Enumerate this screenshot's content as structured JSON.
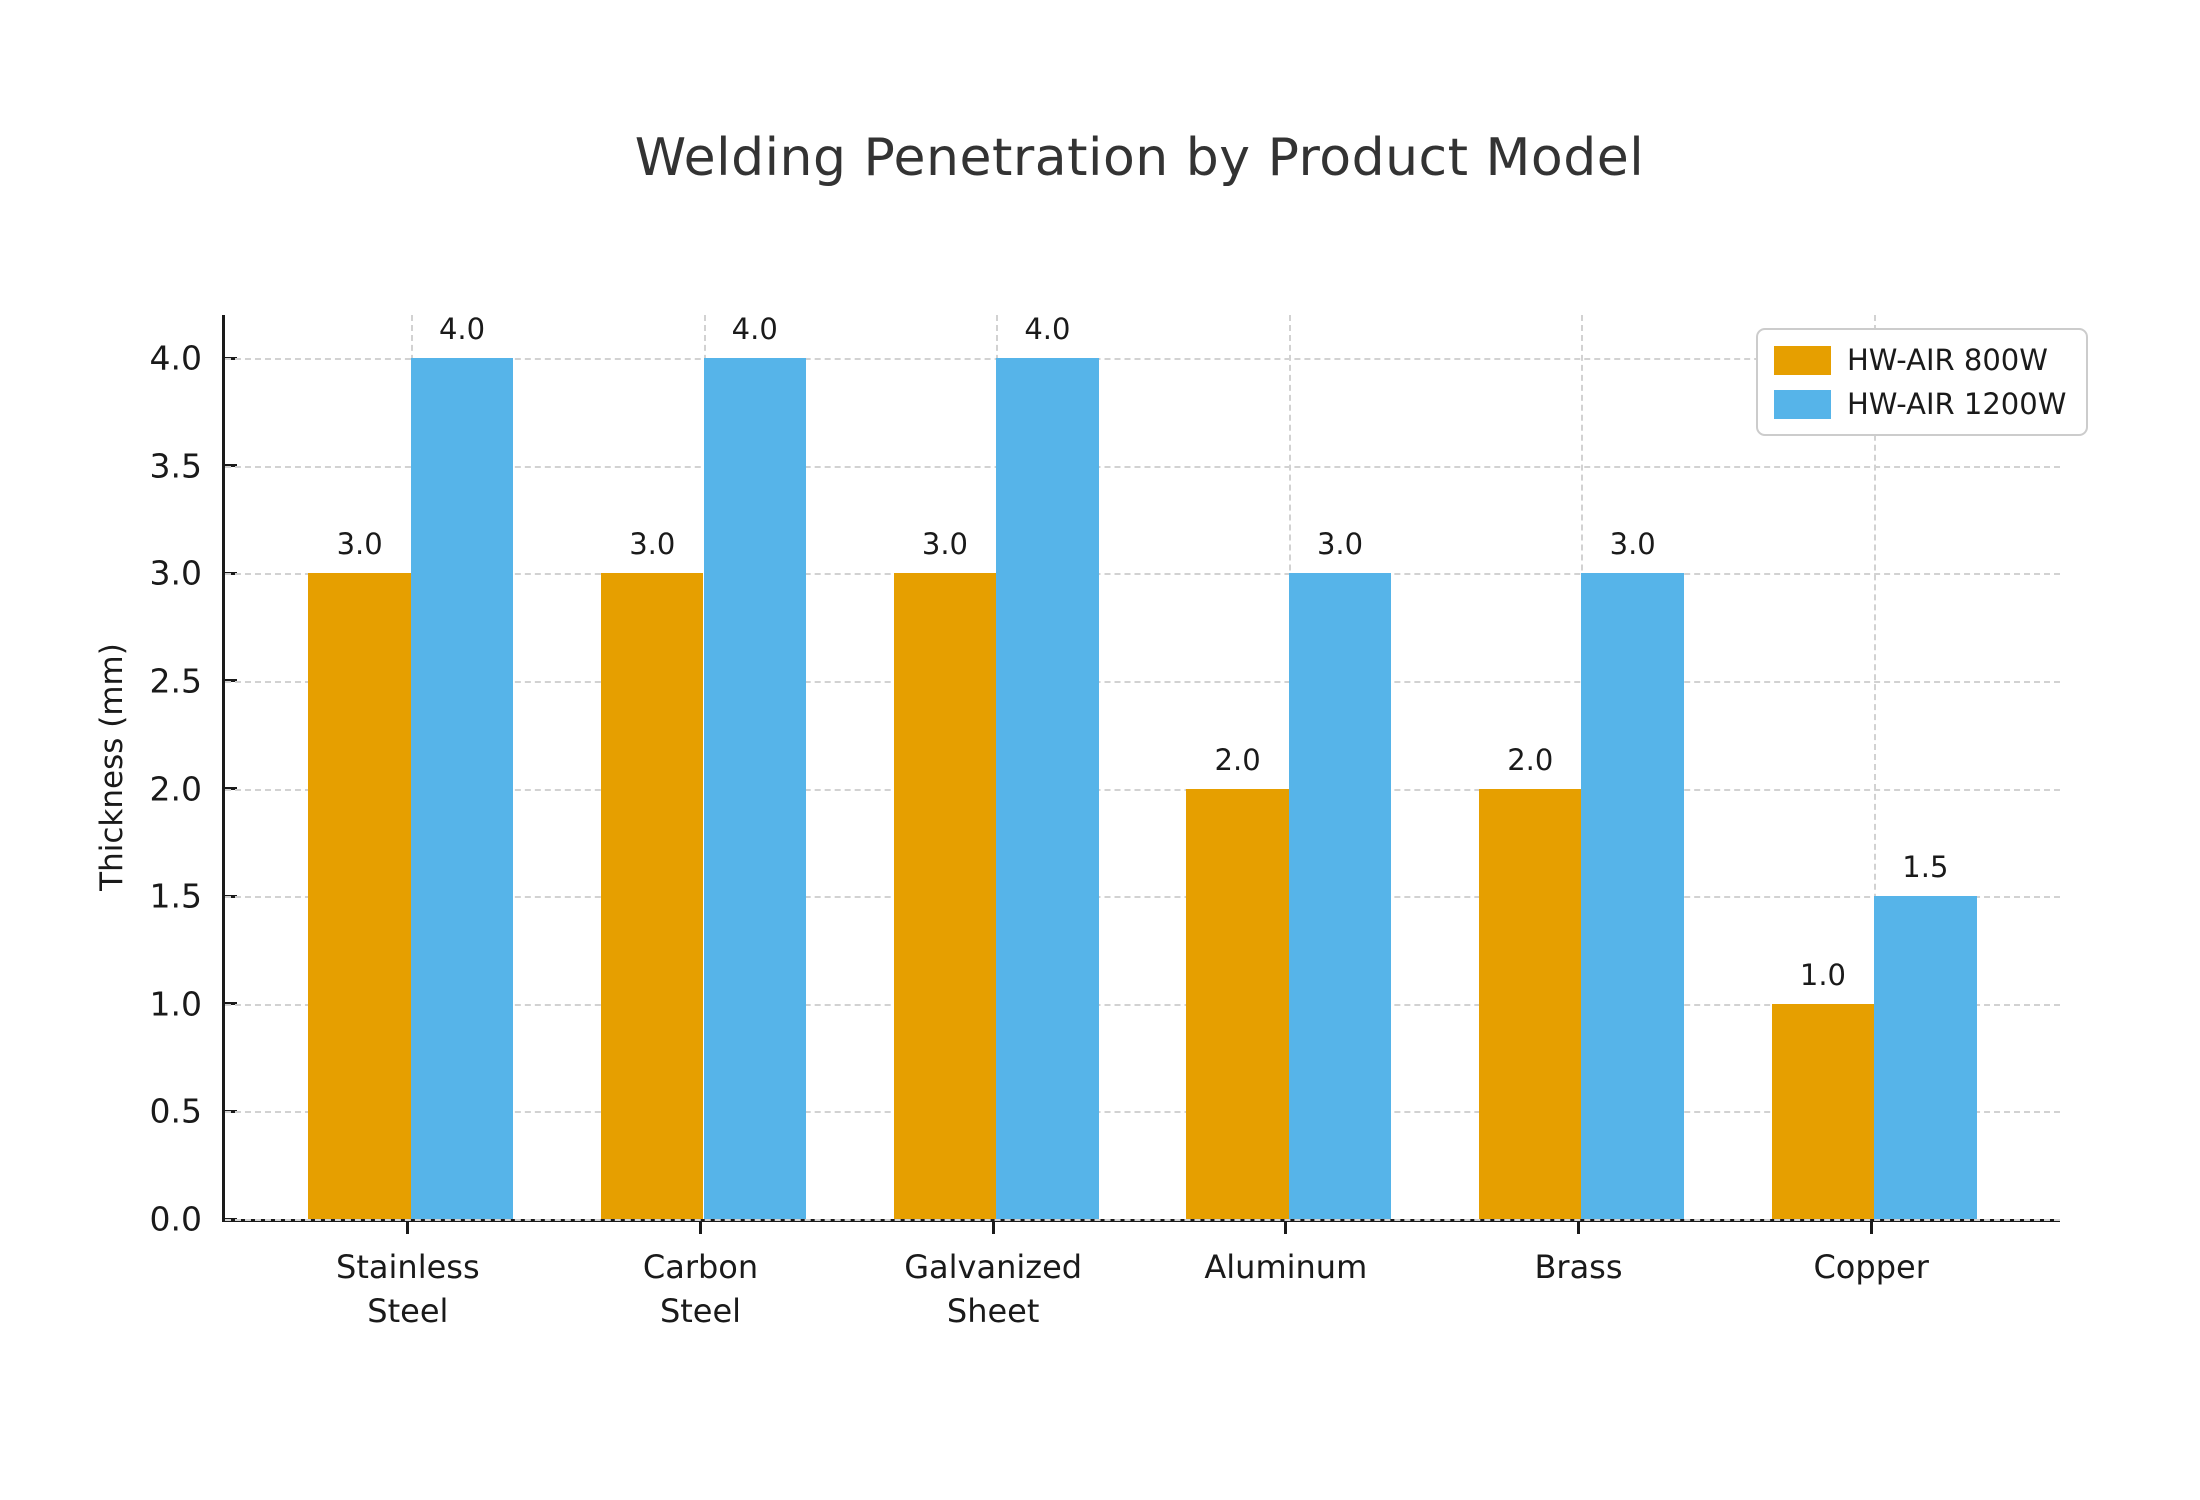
{
  "chart_data": {
    "type": "bar",
    "title": "Welding Penetration by Product Model",
    "xlabel": "",
    "ylabel": "Thickness (mm)",
    "categories": [
      "Stainless\nSteel",
      "Carbon\nSteel",
      "Galvanized\nSheet",
      "Aluminum",
      "Brass",
      "Copper"
    ],
    "series": [
      {
        "name": "HW-AIR 800W",
        "color": "#E69F00",
        "values": [
          3.0,
          3.0,
          3.0,
          2.0,
          2.0,
          1.0
        ]
      },
      {
        "name": "HW-AIR 1200W",
        "color": "#56B4E9",
        "values": [
          4.0,
          4.0,
          4.0,
          3.0,
          3.0,
          1.5
        ]
      }
    ],
    "yticks": [
      "0.0",
      "0.5",
      "1.0",
      "1.5",
      "2.0",
      "2.5",
      "3.0",
      "3.5",
      "4.0"
    ],
    "ylim": [
      0,
      4.2
    ],
    "grid": "dashed-both-axes",
    "legend_position": "upper-right",
    "bar_value_labels_decimals": 1
  },
  "palette": {
    "series_800w": "#E69F00",
    "series_1200w": "#56B4E9",
    "title_text": "#333333",
    "axis_text": "#1a1a1a",
    "gridline": "#d2d2d2",
    "legend_border": "#cccccc",
    "background": "#ffffff"
  }
}
